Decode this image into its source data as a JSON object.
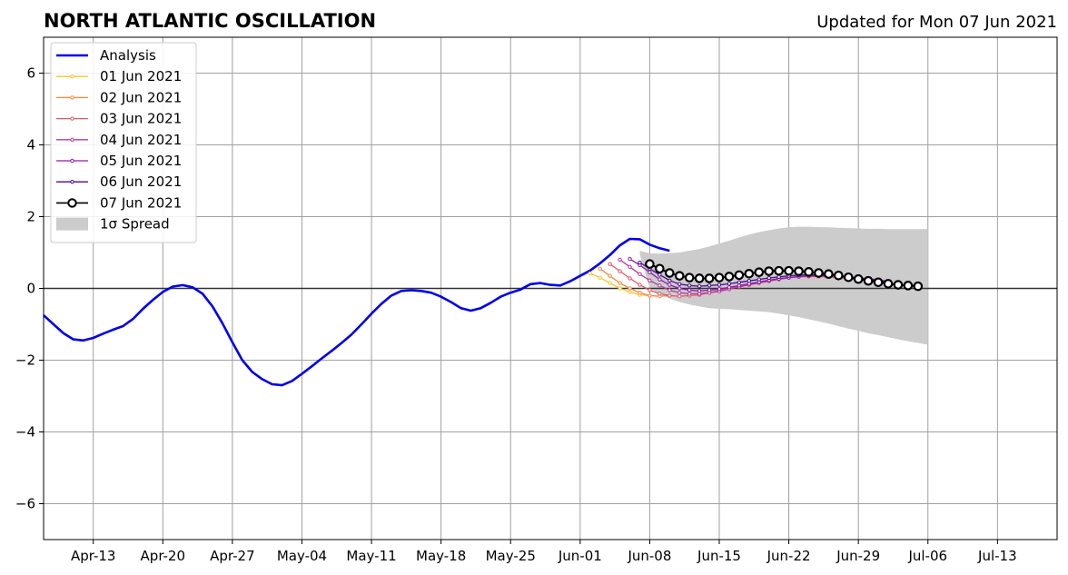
{
  "header": {
    "title": "NORTH ATLANTIC OSCILLATION",
    "updated": "Updated for Mon 07 Jun 2021"
  },
  "chart_data": {
    "type": "line",
    "title": "NORTH ATLANTIC OSCILLATION",
    "subtitle": "Updated for Mon 07 Jun 2021",
    "xlabel": "",
    "ylabel": "",
    "x_range": [
      "2021-04-08",
      "2021-07-19"
    ],
    "ylim": [
      -7,
      7
    ],
    "grid": true,
    "legend_position": "top-left",
    "x_ticks": [
      "Apr-13",
      "Apr-20",
      "Apr-27",
      "May-04",
      "May-11",
      "May-18",
      "May-25",
      "Jun-01",
      "Jun-08",
      "Jun-15",
      "Jun-22",
      "Jun-29",
      "Jul-06",
      "Jul-13"
    ],
    "y_ticks": [
      "6",
      "4",
      "2",
      "0",
      "−2",
      "−4",
      "−6"
    ],
    "analysis": {
      "name": "Analysis",
      "color": "#0000ee",
      "start_date": "2021-04-08",
      "values": [
        -0.75,
        -1.0,
        -1.25,
        -1.42,
        -1.45,
        -1.38,
        -1.26,
        -1.15,
        -1.05,
        -0.85,
        -0.57,
        -0.32,
        -0.1,
        0.05,
        0.09,
        0.03,
        -0.15,
        -0.5,
        -0.97,
        -1.5,
        -2.0,
        -2.33,
        -2.53,
        -2.67,
        -2.7,
        -2.58,
        -2.38,
        -2.17,
        -1.95,
        -1.74,
        -1.52,
        -1.28,
        -1.0,
        -0.7,
        -0.43,
        -0.2,
        -0.07,
        -0.05,
        -0.07,
        -0.12,
        -0.23,
        -0.38,
        -0.55,
        -0.62,
        -0.55,
        -0.4,
        -0.23,
        -0.12,
        -0.03,
        0.12,
        0.15,
        0.1,
        0.08,
        0.2,
        0.35,
        0.5,
        0.7,
        0.93,
        1.2,
        1.38,
        1.37,
        1.22,
        1.12,
        1.05
      ]
    },
    "forecasts": [
      {
        "name": "01 Jun 2021",
        "color": "#f9c22e",
        "start_date": "2021-06-02",
        "values": [
          0.42,
          0.3,
          0.15,
          0.0,
          -0.1,
          -0.18,
          -0.2
        ]
      },
      {
        "name": "02 Jun 2021",
        "color": "#f28b3d",
        "start_date": "2021-06-03",
        "values": [
          0.55,
          0.35,
          0.15,
          0.0,
          -0.12,
          -0.2,
          -0.22,
          -0.2
        ]
      },
      {
        "name": "03 Jun 2021",
        "color": "#dd5a6b",
        "start_date": "2021-06-04",
        "values": [
          0.68,
          0.48,
          0.28,
          0.1,
          -0.05,
          -0.15,
          -0.2,
          -0.22,
          -0.2,
          -0.18,
          -0.12,
          -0.06,
          0.0,
          0.05,
          0.1,
          0.15,
          0.2,
          0.25,
          0.3,
          0.32,
          0.33,
          0.33,
          0.32,
          0.3,
          0.27,
          0.25,
          0.22,
          0.2,
          0.18
        ]
      },
      {
        "name": "04 Jun 2021",
        "color": "#b33c98",
        "start_date": "2021-06-05",
        "values": [
          0.8,
          0.6,
          0.4,
          0.22,
          0.08,
          -0.05,
          -0.12,
          -0.15,
          -0.15,
          -0.12,
          -0.08,
          -0.02,
          0.04,
          0.1,
          0.16,
          0.21,
          0.26,
          0.3,
          0.33,
          0.35,
          0.36,
          0.35,
          0.33,
          0.3,
          0.27,
          0.24,
          0.2,
          0.17
        ]
      },
      {
        "name": "05 Jun 2021",
        "color": "#8a1ea8",
        "start_date": "2021-06-06",
        "values": [
          0.82,
          0.65,
          0.45,
          0.25,
          0.1,
          0.0,
          -0.05,
          -0.07,
          -0.05,
          -0.02,
          0.03,
          0.08,
          0.13,
          0.18,
          0.23,
          0.27,
          0.3,
          0.33,
          0.35,
          0.36,
          0.35,
          0.34,
          0.32,
          0.3,
          0.27,
          0.24,
          0.2
        ]
      },
      {
        "name": "06 Jun 2021",
        "color": "#4a0a8a",
        "start_date": "2021-06-07",
        "values": [
          0.72,
          0.55,
          0.38,
          0.22,
          0.12,
          0.08,
          0.06,
          0.08,
          0.1,
          0.13,
          0.17,
          0.21,
          0.25,
          0.29,
          0.32,
          0.35,
          0.37,
          0.38,
          0.38,
          0.37,
          0.35,
          0.32,
          0.29,
          0.25,
          0.22,
          0.18
        ]
      },
      {
        "name": "07 Jun 2021",
        "color": "#000000",
        "start_date": "2021-06-08",
        "values": [
          0.68,
          0.55,
          0.43,
          0.35,
          0.3,
          0.28,
          0.28,
          0.3,
          0.33,
          0.37,
          0.41,
          0.45,
          0.48,
          0.49,
          0.49,
          0.48,
          0.46,
          0.43,
          0.4,
          0.36,
          0.31,
          0.26,
          0.21,
          0.17,
          0.13,
          0.1,
          0.08,
          0.06
        ]
      }
    ],
    "spread": {
      "name": "1σ Spread",
      "color": "#cccccc",
      "start_date": "2021-06-07",
      "upper": [
        1.05,
        0.98,
        0.97,
        0.98,
        1.0,
        1.05,
        1.1,
        1.17,
        1.25,
        1.33,
        1.42,
        1.5,
        1.57,
        1.62,
        1.67,
        1.7,
        1.72,
        1.72,
        1.71,
        1.7,
        1.69,
        1.68,
        1.67,
        1.66,
        1.66,
        1.65,
        1.65,
        1.65,
        1.65,
        1.65
      ],
      "lower": [
        0.95,
        0.0,
        -0.15,
        -0.28,
        -0.38,
        -0.45,
        -0.5,
        -0.55,
        -0.57,
        -0.58,
        -0.6,
        -0.62,
        -0.64,
        -0.66,
        -0.7,
        -0.75,
        -0.8,
        -0.86,
        -0.92,
        -0.98,
        -1.05,
        -1.12,
        -1.18,
        -1.25,
        -1.3,
        -1.36,
        -1.42,
        -1.47,
        -1.52,
        -1.57
      ]
    }
  }
}
